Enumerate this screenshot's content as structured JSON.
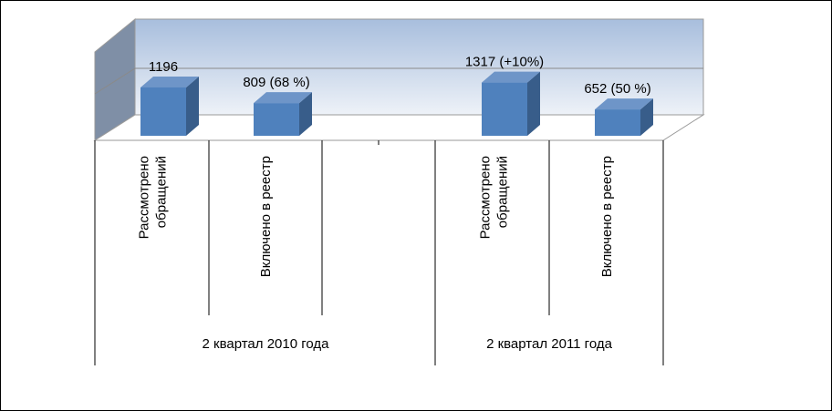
{
  "chart_data": {
    "type": "bar",
    "bar_color": "#4F81BD",
    "bar_side_color": "#385D8A",
    "bar_top_color": "#6E95C8",
    "back_wall_top_color": "#A8BEDD",
    "back_wall_bottom_color": "#EEF2F8",
    "side_wall_color": "#7F8FA6",
    "bars": [
      {
        "group": "2 квартал 2010 года",
        "category": "Рассмотрено обращений",
        "value": 1196,
        "data_label": "1196"
      },
      {
        "group": "2 квартал 2010 года",
        "category": "Включено в реестр",
        "value": 809,
        "data_label": "809 (68 %)"
      },
      {
        "group": "2 квартал 2011 года",
        "category": "Рассмотрено обращений",
        "value": 1317,
        "data_label": "1317 (+10%)"
      },
      {
        "group": "2 квартал 2011 года",
        "category": "Включено в реестр",
        "value": 652,
        "data_label": "652 (50 %)"
      }
    ],
    "category_labels": [
      [
        "Рассмотрено",
        "обращений"
      ],
      [
        "Включено в реестр"
      ],
      [],
      [
        "Рассмотрено",
        "обращений"
      ],
      [
        "Включено в реестр"
      ]
    ],
    "group_labels": [
      "2 квартал 2010 года",
      "2 квартал 2011 года"
    ],
    "ylim": [
      0,
      1400
    ],
    "grid": true,
    "legend": "none"
  }
}
